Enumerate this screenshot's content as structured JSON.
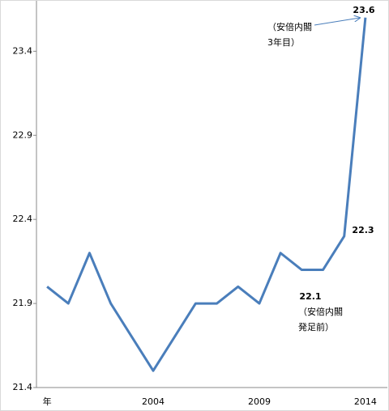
{
  "chart_data": {
    "type": "line",
    "categories": [
      "年",
      null,
      null,
      null,
      null,
      "2004",
      null,
      null,
      null,
      null,
      "2009",
      null,
      null,
      null,
      null,
      "2014"
    ],
    "series": [
      {
        "color": "#4a7ebb",
        "values": [
          22.0,
          21.9,
          22.2,
          21.9,
          21.7,
          21.5,
          21.7,
          21.9,
          21.9,
          22.0,
          21.9,
          22.2,
          22.1,
          22.1,
          22.3,
          23.6
        ],
        "value_labels": [
          null,
          null,
          null,
          null,
          null,
          null,
          null,
          null,
          null,
          null,
          null,
          null,
          "22.1",
          null,
          "22.3",
          "23.6"
        ]
      }
    ],
    "ylim": [
      21.4,
      23.7
    ],
    "yticks": [
      21.4,
      21.9,
      22.4,
      22.9,
      23.4
    ],
    "grid": false,
    "annotations": [
      {
        "lines": [
          "（安倍内閣",
          "3年目）"
        ]
      },
      {
        "lines": [
          "（安倍内閣",
          "発足前）"
        ]
      }
    ]
  }
}
